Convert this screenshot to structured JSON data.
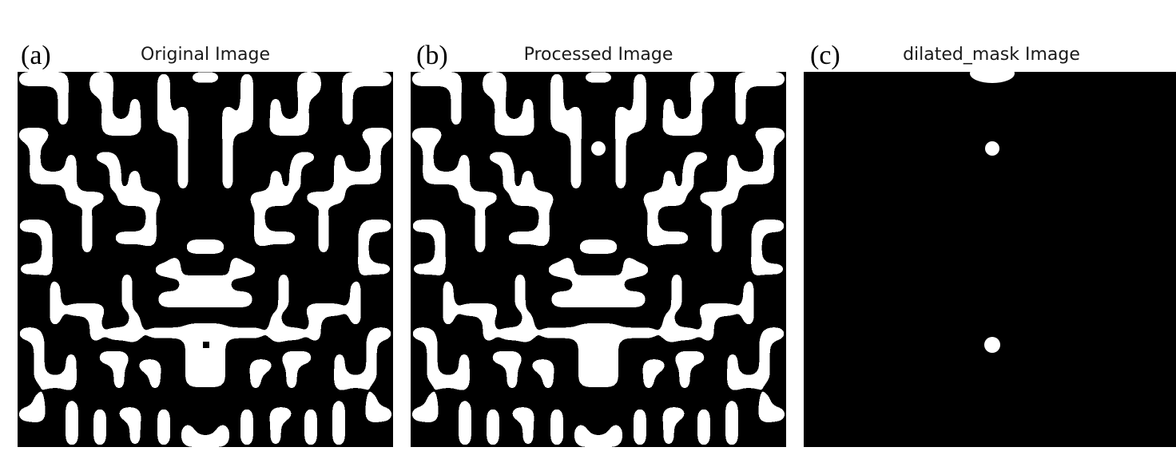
{
  "panels": [
    {
      "tag": "(a)",
      "title": "Original Image",
      "icon": "binary-pattern-image"
    },
    {
      "tag": "(b)",
      "title": "Processed Image",
      "icon": "binary-pattern-image"
    },
    {
      "tag": "(c)",
      "title": "dilated_mask Image",
      "icon": "mask-image"
    }
  ],
  "colors": {
    "foreground": "#ffffff",
    "background": "#000000"
  }
}
